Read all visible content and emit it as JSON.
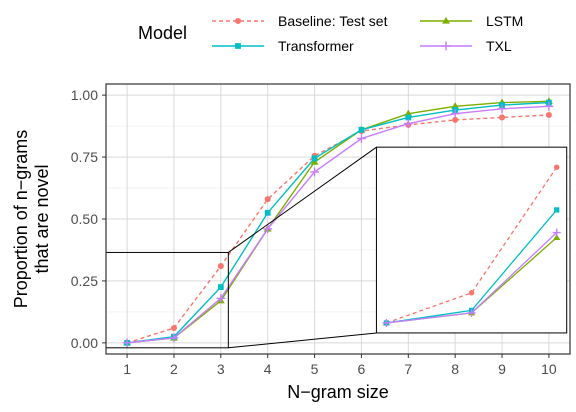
{
  "chart_data": {
    "type": "line",
    "xlabel": "N−gram size",
    "ylabel_lines": [
      "Proportion of n−grams",
      "that are novel"
    ],
    "x": [
      1,
      2,
      3,
      4,
      5,
      6,
      7,
      8,
      9,
      10
    ],
    "x_ticks": [
      "1",
      "2",
      "3",
      "4",
      "5",
      "6",
      "7",
      "8",
      "9",
      "10"
    ],
    "y_ticks": [
      "0.00",
      "0.25",
      "0.50",
      "0.75",
      "1.00"
    ],
    "y_tick_values": [
      0,
      0.25,
      0.5,
      0.75,
      1.0
    ],
    "xlim": [
      0.55,
      10.45
    ],
    "ylim": [
      -0.045,
      1.045
    ],
    "grid": true,
    "legend": {
      "title": "Model",
      "placement": "top",
      "entries": [
        "Baseline: Test set",
        "LSTM",
        "Transformer",
        "TXL"
      ]
    },
    "series": [
      {
        "name": "Baseline: Test set",
        "color": "#F8766D",
        "dash": true,
        "marker": "circle",
        "values": [
          0.0,
          0.06,
          0.31,
          0.58,
          0.755,
          0.855,
          0.88,
          0.9,
          0.91,
          0.92
        ]
      },
      {
        "name": "LSTM",
        "color": "#7CAE00",
        "dash": false,
        "marker": "triangle",
        "values": [
          0.0,
          0.02,
          0.17,
          0.46,
          0.73,
          0.86,
          0.925,
          0.955,
          0.97,
          0.975
        ]
      },
      {
        "name": "Transformer",
        "color": "#00BFC4",
        "dash": false,
        "marker": "square",
        "values": [
          0.0,
          0.025,
          0.225,
          0.525,
          0.745,
          0.86,
          0.91,
          0.94,
          0.96,
          0.97
        ]
      },
      {
        "name": "TXL",
        "color": "#C77CFF",
        "dash": false,
        "marker": "plus",
        "values": [
          0.0,
          0.02,
          0.18,
          0.46,
          0.69,
          0.825,
          0.885,
          0.925,
          0.945,
          0.955
        ]
      }
    ],
    "inset": {
      "source_x": [
        0.55,
        3.16
      ],
      "source_y": [
        -0.02,
        0.365
      ],
      "target_x": [
        6.32,
        10.38
      ],
      "target_y": [
        0.04,
        0.79
      ]
    }
  }
}
